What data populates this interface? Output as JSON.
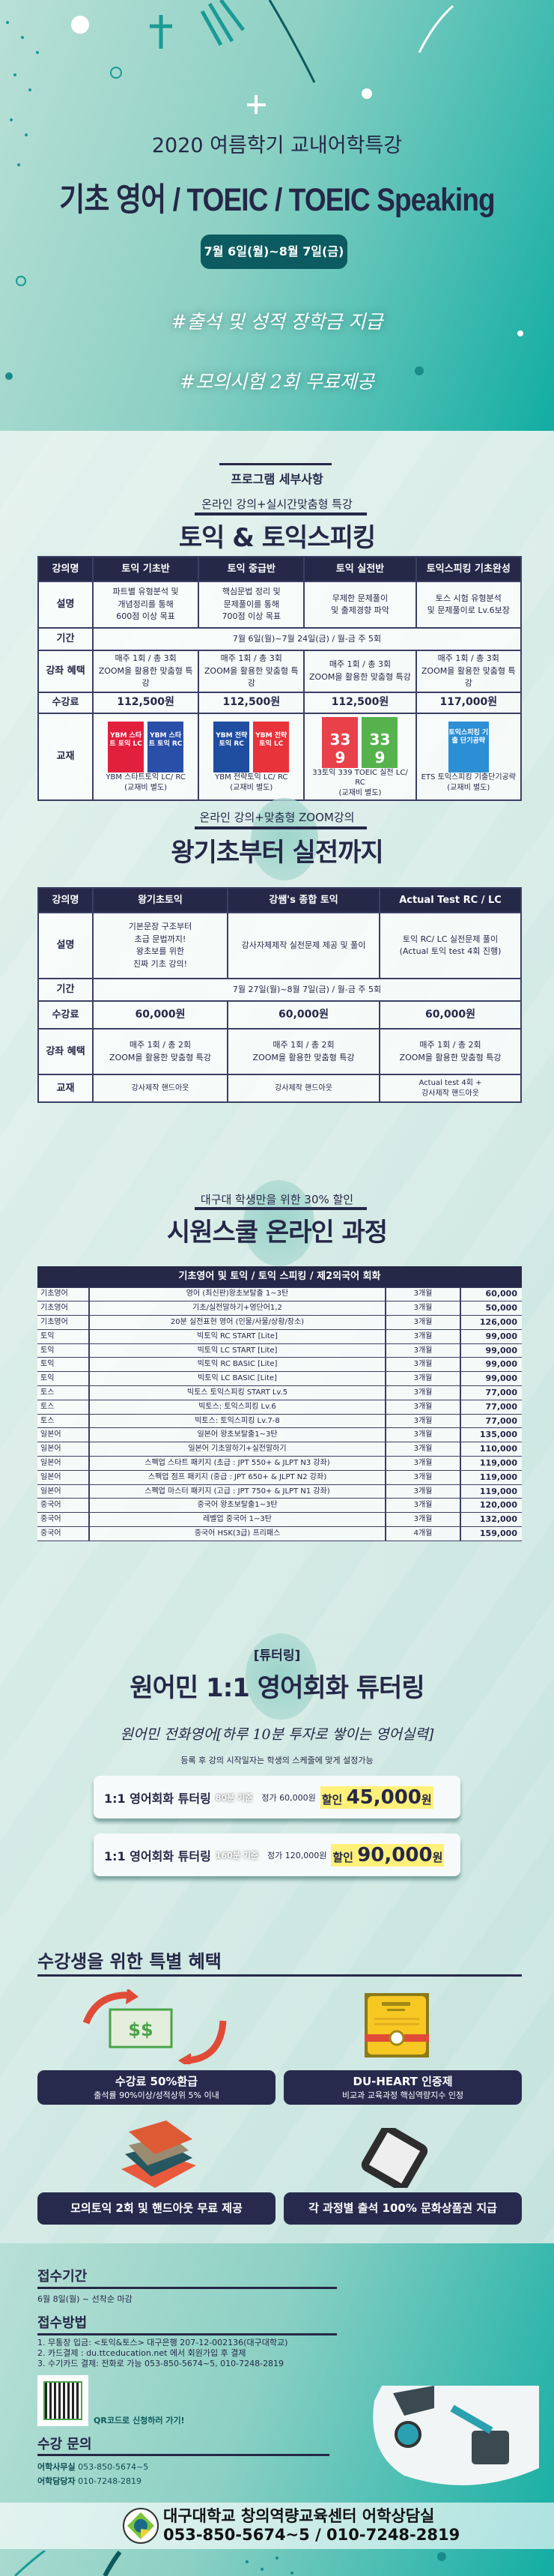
{
  "hero": {
    "subtitle": "2020 여름학기 교내어학특강",
    "title": "기초 영어 / TOEIC / TOEIC Speaking",
    "date": "7월 6일(월)~8월 7일(금)",
    "hashtags": [
      "#출석 및 성적 장학금 지급",
      "#모의시험 2회 무료제공"
    ]
  },
  "program_heading": "프로그램 세부사항",
  "section1": {
    "subtitle": "온라인 강의+실시간맞춤형 특강",
    "title": "토익 & 토익스피킹",
    "row_labels": {
      "name": "강의명",
      "desc": "설명",
      "period": "기간",
      "benefit": "강좌 혜택",
      "fee": "수강료",
      "book": "교재"
    },
    "period": "7월 6일(월)~7월 24일(금) / 월-금  주 5회",
    "courses": [
      {
        "name": "토익 기초반",
        "desc": [
          "파트별 유형분석 및",
          "개념정리를 통해",
          "600점 이상 목표"
        ],
        "benefit": [
          "매주 1회 / 총 3회",
          "ZOOM을 활용한 맞춤형 특강"
        ],
        "fee": "112,500원",
        "book": [
          "YBM 스타트토익 LC/ RC",
          "(교재비 별도)"
        ],
        "covers": [
          {
            "text": "YBM 스타트 토익 LC",
            "color": "#e2203e"
          },
          {
            "text": "YBM 스타트 토익 RC",
            "color": "#2a4fa8"
          }
        ]
      },
      {
        "name": "토익 중급반",
        "desc": [
          "핵심문법 정리 및",
          "문제풀이를 통해",
          "700점 이상 목표"
        ],
        "benefit": [
          "매주 1회 / 총 3회",
          "ZOOM을 활용한 맞춤형 특강"
        ],
        "fee": "112,500원",
        "book": [
          "YBM 전략토익 LC/ RC",
          "(교재비 별도)"
        ],
        "covers": [
          {
            "text": "YBM 전략토익 RC",
            "color": "#1f4ea0"
          },
          {
            "text": "YBM 전략토익 LC",
            "color": "#e8333b"
          }
        ]
      },
      {
        "name": "토익 실전반",
        "desc": [
          "무제한 문제풀이",
          "및 출제경향 파악"
        ],
        "benefit": [
          "매주 1회 / 총 3회",
          "ZOOM을 활용한 맞춤형 특강"
        ],
        "fee": "112,500원",
        "book": [
          "33토익 339 TOEIC 실전 LC/ RC",
          "(교재비 별도)"
        ],
        "covers": [
          {
            "text": "33 9",
            "color": "#e8414a"
          },
          {
            "text": "33 9",
            "color": "#56b24d"
          }
        ]
      },
      {
        "name": "토익스피킹 기초완성",
        "desc": [
          "토스 시험 유형분석",
          "및 문제풀이로 Lv.6보장"
        ],
        "benefit": [
          "매주 1회 / 총 3회",
          "ZOOM을 활용한 맞춤형 특강"
        ],
        "fee": "117,000원",
        "book": [
          "ETS 토익스피킹 기출단기공략",
          "(교재비 별도)"
        ],
        "covers": [
          {
            "text": "토익스피킹 기출 단기공략",
            "color": "#2c8fd6"
          }
        ]
      }
    ]
  },
  "section2": {
    "subtitle": "온라인 강의+맞춤형 ZOOM강의",
    "title": "왕기초부터 실전까지",
    "period": "7월 27일(월)~8월 7일(금) / 월-금  주 5회",
    "courses": [
      {
        "name": "왕기초토익",
        "desc": [
          "기본문장 구조부터",
          "초급 문법까지!",
          "왕초보를 위한",
          "진짜 기초 강의!"
        ],
        "fee": "60,000원",
        "benefit": [
          "매주 1회 / 총 2회",
          "ZOOM을 활용한 맞춤형 특강"
        ],
        "book": [
          "강사제작 핸드아웃"
        ]
      },
      {
        "name": "강쌤's 종합 토익",
        "desc": [
          "강사자체제작 실전문제 제공 및 풀이"
        ],
        "fee": "60,000원",
        "benefit": [
          "매주 1회 / 총 2회",
          "ZOOM을 활용한 맞춤형 특강"
        ],
        "book": [
          "강사제작 핸드아웃"
        ]
      },
      {
        "name": "Actual Test RC / LC",
        "desc": [
          "토익 RC/ LC 실전문제 풀이",
          "(Actual 토익 test 4회 진행)"
        ],
        "fee": "60,000원",
        "benefit": [
          "매주 1회 / 총 2회",
          "ZOOM을 활용한 맞춤형 특강"
        ],
        "book": [
          "Actual test 4회 +",
          "강사제작 핸드아웃"
        ]
      }
    ]
  },
  "section3": {
    "subtitle": "대구대 학생만을 위한 30% 할인",
    "title": "시원스쿨 온라인 과정",
    "table_header": "기초영어 및 토익 / 토익 스피킹 / 제2외국어 회화",
    "rows": [
      [
        "기초영어",
        "영어 (최신판)왕초보탈출 1~3탄",
        "3개월",
        "60,000"
      ],
      [
        "기초영어",
        "기초/실전말하기+영단어1,2",
        "3개월",
        "50,000"
      ],
      [
        "기초영어",
        "20분 실전표현 영어 (인물/사물/상황/장소)",
        "3개월",
        "126,000"
      ],
      [
        "토익",
        "빅토익 RC START [Lite]",
        "3개월",
        "99,000"
      ],
      [
        "토익",
        "빅토익 LC START [Lite]",
        "3개월",
        "99,000"
      ],
      [
        "토익",
        "빅토익 RC BASIC [Lite]",
        "3개월",
        "99,000"
      ],
      [
        "토익",
        "빅토익 LC BASIC [Lite]",
        "3개월",
        "99,000"
      ],
      [
        "토스",
        "빅토스 토익스피킹 START Lv.5",
        "3개월",
        "77,000"
      ],
      [
        "토스",
        "빅토스: 토익스피킹 Lv.6",
        "3개월",
        "77,000"
      ],
      [
        "토스",
        "빅토스: 토익스피킹 Lv.7-8",
        "3개월",
        "77,000"
      ],
      [
        "일본어",
        "일본어 왕초보탈출1~3탄",
        "3개월",
        "135,000"
      ],
      [
        "일본어",
        "일본어 기초말하기+실전말하기",
        "3개월",
        "110,000"
      ],
      [
        "일본어",
        "스펙업 스타트 패키지 (초급 : JPT 550+ & JLPT N3 강좌)",
        "3개월",
        "119,000"
      ],
      [
        "일본어",
        "스펙업 점프 패키지 (중급 : JPT 650+ & JLPT N2 강좌)",
        "3개월",
        "119,000"
      ],
      [
        "일본어",
        "스펙업 마스터 패키지 (고급 : JPT 750+ & JLPT N1 강좌)",
        "3개월",
        "119,000"
      ],
      [
        "중국어",
        "중국어 왕초보탈출1~3탄",
        "3개월",
        "120,000"
      ],
      [
        "중국어",
        "레벨업 중국어 1~3탄",
        "3개월",
        "132,000"
      ],
      [
        "중국어",
        "중국어 HSK(3급) 프리패스",
        "4개월",
        "159,000"
      ]
    ]
  },
  "tutoring": {
    "tag": "[튜터링]",
    "title": "원어민 1:1 영어회화 튜터링",
    "slogan": "원어민 전화영어[하루 10분 투자로 쌓이는 영어실력]",
    "note": "등록 후 강의 시작일자는 학생의 스케줄에 맞게 설정가능",
    "plans": [
      {
        "name": "1:1 영어회화 튜터링",
        "basis": "80분 기준",
        "regular": "정가 60,000원",
        "discount_label": "할인",
        "price": "45,000",
        "unit": "원"
      },
      {
        "name": "1:1 영어회화 튜터링",
        "basis": "160분 기준",
        "regular": "정가 120,000원",
        "discount_label": "할인",
        "price": "90,000",
        "unit": "원"
      }
    ]
  },
  "benefits": {
    "title": "수강생을 위한 특별 혜택",
    "items": [
      {
        "title": "수강료 50%환급",
        "desc": "출석률 90%이상/성적상위 5% 이내",
        "icon": "money-refund-icon"
      },
      {
        "title": "DU-HEART 인증제",
        "desc": "비교과 교육과정 핵심역량지수 인정",
        "icon": "certificate-icon"
      },
      {
        "title": "모의토익 2회 및 핸드아웃 무료 제공",
        "desc": "",
        "icon": "books-icon"
      },
      {
        "title": "각 과정별 출석 100% 문화상품권 지급",
        "desc": "",
        "icon": "tablet-icon"
      }
    ]
  },
  "footer": {
    "period_heading": "접수기간",
    "period": "6월 8일(월) ~ 선착순 마감",
    "method_heading": "접수방법",
    "methods": [
      "1. 무통장 입금: <토익&토스> 대구은행 207-12-002136(대구대학교)",
      "2. 카드결제 : du.ttceducation.net 에서 회원가입 후 결제",
      "3. 수기카드 결제: 전화로 가능 053-850-5674~5, 010-7248-2819"
    ],
    "qr_label": "QR코드로 신청하러 가기!",
    "contact_heading": "수강 문의",
    "contacts": [
      {
        "label": "어학사무실",
        "value": "053-850-5674~5"
      },
      {
        "label": "어학담당자",
        "value": "010-7248-2819"
      }
    ],
    "org": "대구대학교 창의역량교육센터 어학상담실",
    "org_phone": "053-850-5674~5 / 010-7248-2819",
    "logo_text": "DAEGU UNIVERSITY 대구대학교"
  },
  "colors": {
    "navy": "#252847",
    "teal": "#12ada3",
    "highlight": "#fff07a",
    "pill": "#0c5b60"
  }
}
